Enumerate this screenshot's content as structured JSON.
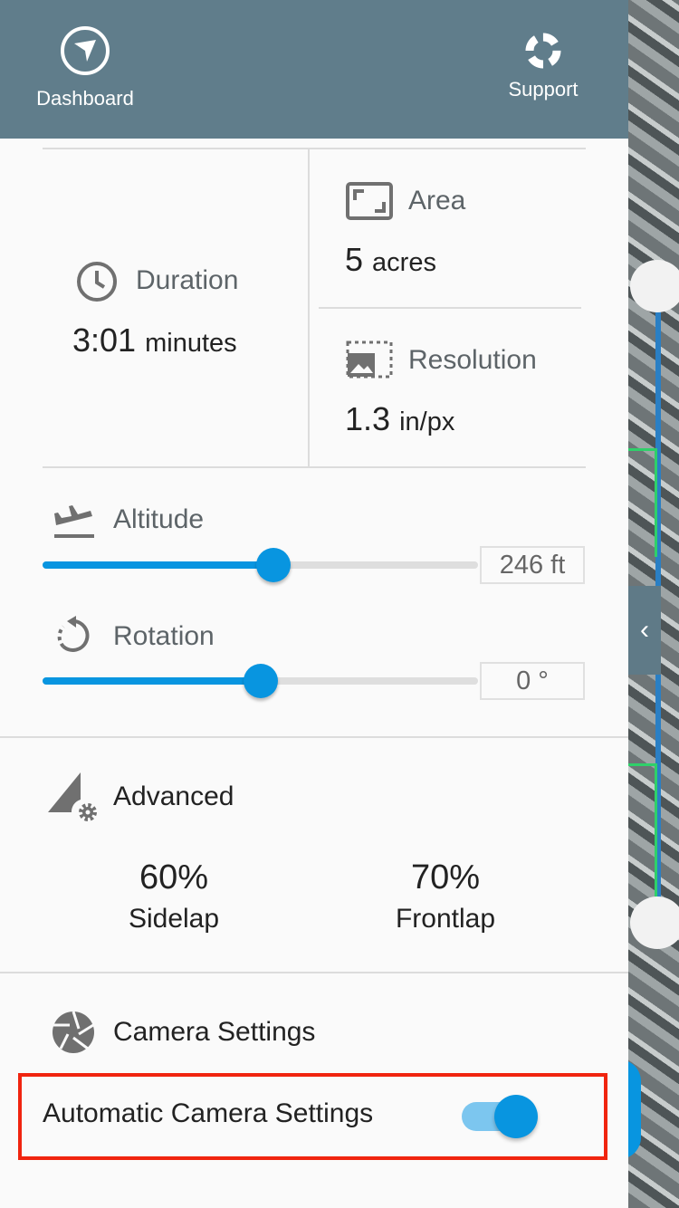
{
  "header": {
    "dashboard_label": "Dashboard",
    "support_label": "Support",
    "background": "#607d8b"
  },
  "stats": {
    "duration": {
      "label": "Duration",
      "value": "3:01",
      "unit": "minutes"
    },
    "area": {
      "label": "Area",
      "value": "5",
      "unit": "acres"
    },
    "resolution": {
      "label": "Resolution",
      "value": "1.3",
      "unit": "in/px"
    }
  },
  "altitude": {
    "label": "Altitude",
    "value": "246 ft",
    "slider_fraction": 0.53
  },
  "rotation": {
    "label": "Rotation",
    "value": "0 °",
    "slider_fraction": 0.5
  },
  "advanced": {
    "label": "Advanced",
    "sidelap_value": "60%",
    "sidelap_label": "Sidelap",
    "frontlap_value": "70%",
    "frontlap_label": "Frontlap"
  },
  "camera": {
    "label": "Camera Settings",
    "auto_label": "Automatic Camera Settings",
    "auto_enabled": true
  },
  "colors": {
    "accent": "#0895e0",
    "highlight": "#f0240f"
  }
}
